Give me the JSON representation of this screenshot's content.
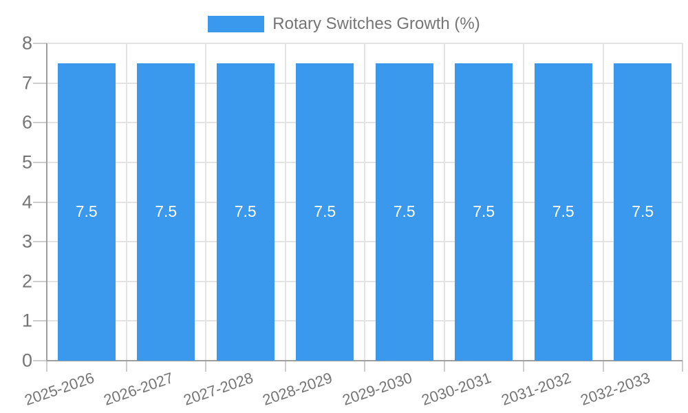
{
  "chart_data": {
    "type": "bar",
    "title": "Rotary Switches Growth (%)",
    "categories": [
      "2025-2026",
      "2026-2027",
      "2027-2028",
      "2028-2029",
      "2029-2030",
      "2030-2031",
      "2031-2032",
      "2032-2033"
    ],
    "values": [
      7.5,
      7.5,
      7.5,
      7.5,
      7.5,
      7.5,
      7.5,
      7.5
    ],
    "bar_labels": [
      "7.5",
      "7.5",
      "7.5",
      "7.5",
      "7.5",
      "7.5",
      "7.5",
      "7.5"
    ],
    "xlabel": "",
    "ylabel": "",
    "ylim": [
      0,
      8
    ],
    "yticks": [
      0,
      1,
      2,
      3,
      4,
      5,
      6,
      7,
      8
    ],
    "grid": true,
    "legend_position": "top",
    "x_label_rotation_deg": -19,
    "colors": {
      "bar": "#3B99ED",
      "bar_label": "#FFFFFF",
      "text": "#757575",
      "grid": "#E3E3E3",
      "tick": "#CCCCCC",
      "axis": "#9E9E9E",
      "background": "#FFFFFF"
    }
  }
}
